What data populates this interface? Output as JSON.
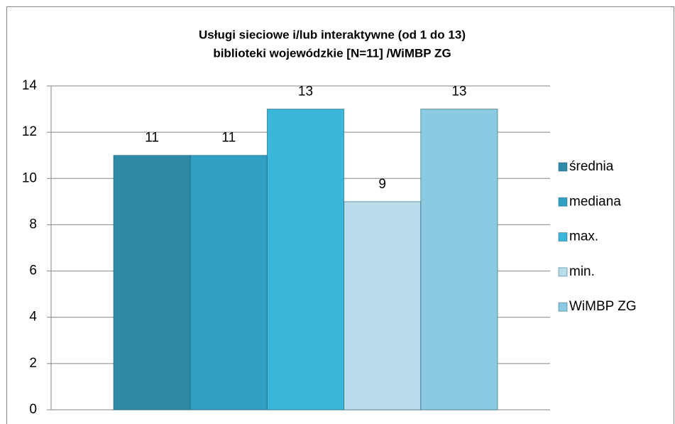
{
  "chart_data": {
    "type": "bar",
    "title": [
      "Usługi sieciowe i/lub interaktywne  (od 1 do 13)",
      "biblioteki wojewódzkie  [N=11] /WiMBP  ZG"
    ],
    "categories": [
      null
    ],
    "series": [
      {
        "name": "średnia",
        "color": "#2e8aa6",
        "values": [
          11
        ]
      },
      {
        "name": "mediana",
        "color": "#2fa0c2",
        "values": [
          11
        ]
      },
      {
        "name": "max.",
        "color": "#3ab6da",
        "values": [
          13
        ]
      },
      {
        "name": "min.",
        "color": "#b9dcea",
        "values": [
          9
        ]
      },
      {
        "name": "WiMBP ZG",
        "color": "#8ccae2",
        "values": [
          13
        ]
      }
    ],
    "ylim": [
      0,
      14
    ],
    "yticks": [
      0,
      2,
      4,
      6,
      8,
      10,
      12,
      14
    ],
    "grid": true,
    "legend": "right"
  }
}
